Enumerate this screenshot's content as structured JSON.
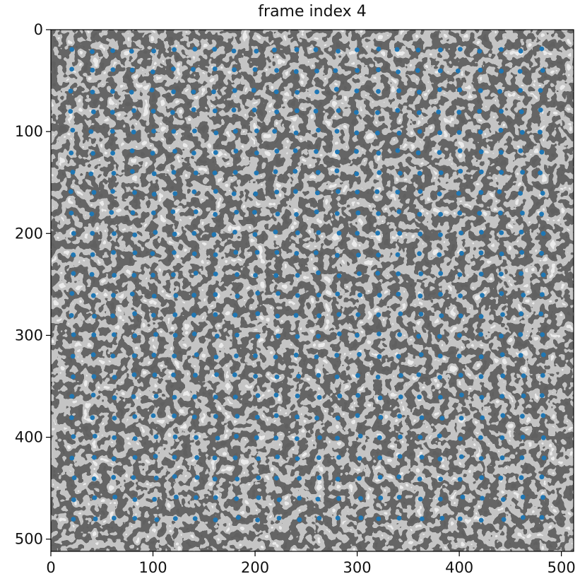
{
  "chart_data": {
    "type": "scatter",
    "title": "frame index 4",
    "xlabel": "",
    "ylabel": "",
    "xlim": [
      0,
      512
    ],
    "ylim": [
      512,
      0
    ],
    "y_axis_inverted": true,
    "grid": false,
    "legend": "none",
    "background": "grayscale speckle image (512×512)",
    "marker_color": "#1f77b4",
    "x_ticks": [
      0,
      100,
      200,
      300,
      400,
      500
    ],
    "y_ticks": [
      0,
      100,
      200,
      300,
      400,
      500
    ],
    "x_tick_labels": [
      "0",
      "100",
      "200",
      "300",
      "400",
      "500"
    ],
    "y_tick_labels": [
      "0",
      "100",
      "200",
      "300",
      "400",
      "500"
    ],
    "grid_points": {
      "x": [
        20,
        40,
        60,
        80,
        100,
        120,
        140,
        160,
        180,
        200,
        220,
        240,
        260,
        280,
        300,
        320,
        340,
        360,
        380,
        400,
        420,
        440,
        460,
        480
      ],
      "y": [
        20,
        40,
        60,
        80,
        100,
        120,
        140,
        160,
        180,
        200,
        220,
        240,
        260,
        280,
        300,
        320,
        340,
        360,
        380,
        400,
        420,
        440,
        460,
        480
      ],
      "description": "24 × 24 tracked points on a 20 px spacing, slightly displaced in frame 4"
    }
  }
}
